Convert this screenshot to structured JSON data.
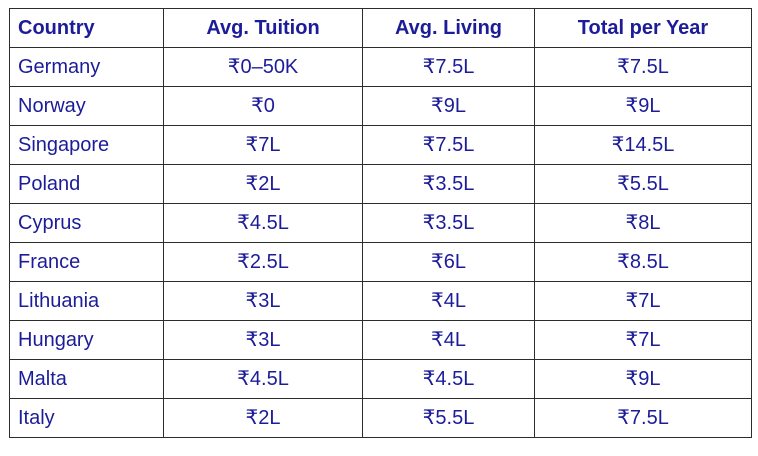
{
  "table": {
    "headers": [
      "Country",
      "Avg. Tuition",
      "Avg. Living",
      "Total per Year"
    ],
    "rows": [
      [
        "Germany",
        "₹0–50K",
        "₹7.5L",
        "₹7.5L"
      ],
      [
        "Norway",
        "₹0",
        "₹9L",
        "₹9L"
      ],
      [
        "Singapore",
        "₹7L",
        "₹7.5L",
        "₹14.5L"
      ],
      [
        "Poland",
        "₹2L",
        "₹3.5L",
        "₹5.5L"
      ],
      [
        "Cyprus",
        "₹4.5L",
        "₹3.5L",
        "₹8L"
      ],
      [
        "France",
        "₹2.5L",
        "₹6L",
        "₹8.5L"
      ],
      [
        "Lithuania",
        "₹3L",
        "₹4L",
        "₹7L"
      ],
      [
        "Hungary",
        "₹3L",
        "₹4L",
        "₹7L"
      ],
      [
        "Malta",
        "₹4.5L",
        "₹4.5L",
        "₹9L"
      ],
      [
        "Italy",
        "₹2L",
        "₹5.5L",
        "₹7.5L"
      ]
    ]
  },
  "colors": {
    "text": "#1c1c9a",
    "border": "#2c2c2c",
    "background": "#ffffff"
  }
}
